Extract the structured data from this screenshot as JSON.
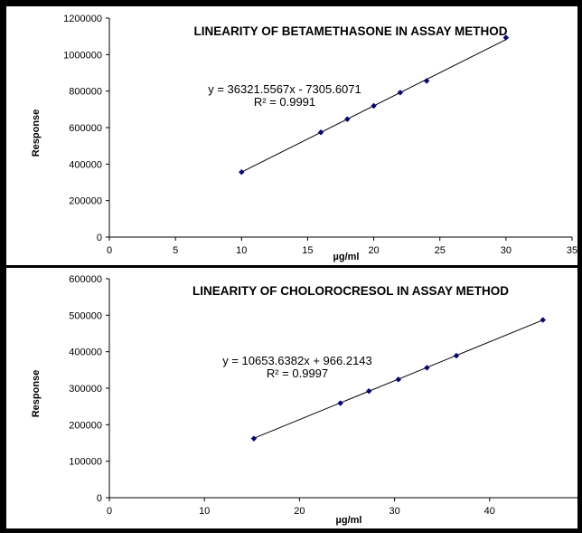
{
  "chart_data": [
    {
      "type": "scatter",
      "title": "LINEARITY OF BETAMETHASONE IN ASSAY METHOD",
      "xlabel": "µg/ml",
      "ylabel": "Response",
      "xlim": [
        0,
        35
      ],
      "ylim": [
        0,
        1200000
      ],
      "xticks": [
        "0",
        "5",
        "10",
        "15",
        "20",
        "25",
        "30",
        "35"
      ],
      "yticks": [
        "0",
        "200000",
        "400000",
        "600000",
        "800000",
        "1000000",
        "1200000"
      ],
      "grid": false,
      "series": [
        {
          "x": [
            10,
            16,
            18,
            20,
            22,
            24,
            30
          ],
          "y": [
            356000,
            574000,
            646000,
            719000,
            792000,
            856000,
            1093000
          ]
        }
      ],
      "trendline": {
        "slope": 36321.5567,
        "intercept": -7305.6071,
        "x_range": [
          10,
          30
        ]
      },
      "equation": "y = 36321.5567x - 7305.6071",
      "r2": "R² = 0.9991",
      "colors": {
        "marker": "#000080",
        "line": "#000000"
      }
    },
    {
      "type": "scatter",
      "title": "LINEARITY OF CHOLOROCRESOL IN ASSAY METHOD",
      "xlabel": "µg/ml",
      "ylabel": "Response",
      "xlim": [
        0,
        50
      ],
      "ylim": [
        0,
        600000
      ],
      "xticks": [
        "0",
        "10",
        "20",
        "30",
        "40",
        "50"
      ],
      "yticks": [
        "0",
        "100000",
        "200000",
        "300000",
        "400000",
        "500000",
        "600000"
      ],
      "grid": false,
      "series": [
        {
          "x": [
            15.2,
            24.3,
            27.3,
            30.4,
            33.4,
            36.5,
            45.6
          ],
          "y": [
            162000,
            259000,
            292000,
            324000,
            356000,
            389000,
            487000
          ]
        }
      ],
      "trendline": {
        "slope": 10653.6382,
        "intercept": 966.2143,
        "x_range": [
          15.2,
          45.6
        ]
      },
      "equation": "y = 10653.6382x + 966.2143",
      "r2": "R² = 0.9997",
      "colors": {
        "marker": "#000080",
        "line": "#000000"
      }
    }
  ]
}
